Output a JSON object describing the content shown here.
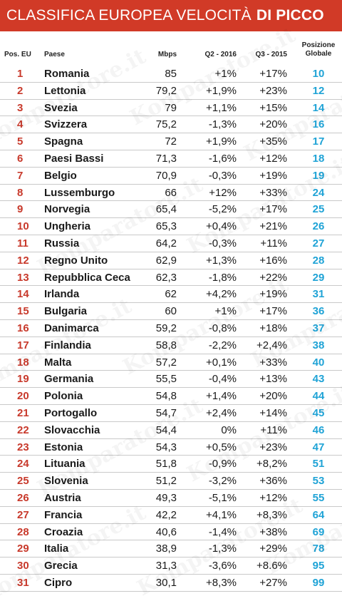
{
  "banner": {
    "title_regular": "CLASSIFICA EUROPEA VELOCITÀ",
    "title_bold": "DI PICCO"
  },
  "columns": {
    "pos": "Pos. EU",
    "paese": "Paese",
    "mbps": "Mbps",
    "q2": "Q2 - 2016",
    "q3": "Q3 - 2015",
    "glob_line1": "Posizione",
    "glob_line2": "Globale"
  },
  "watermark_text": "Komparatore.it",
  "colors": {
    "banner": "#d13a27",
    "rank": "#c8392b",
    "global": "#1fa3d6"
  },
  "rows": [
    {
      "pos": "1",
      "paese": "Romania",
      "mbps": "85",
      "q2": "+1%",
      "q3": "+17%",
      "glob": "10"
    },
    {
      "pos": "2",
      "paese": "Lettonia",
      "mbps": "79,2",
      "q2": "+1,9%",
      "q3": "+23%",
      "glob": "12"
    },
    {
      "pos": "3",
      "paese": "Svezia",
      "mbps": "79",
      "q2": "+1,1%",
      "q3": "+15%",
      "glob": "14"
    },
    {
      "pos": "4",
      "paese": "Svizzera",
      "mbps": "75,2",
      "q2": "-1,3%",
      "q3": "+20%",
      "glob": "16"
    },
    {
      "pos": "5",
      "paese": "Spagna",
      "mbps": "72",
      "q2": "+1,9%",
      "q3": "+35%",
      "glob": "17"
    },
    {
      "pos": "6",
      "paese": "Paesi Bassi",
      "mbps": "71,3",
      "q2": "-1,6%",
      "q3": "+12%",
      "glob": "18"
    },
    {
      "pos": "7",
      "paese": "Belgio",
      "mbps": "70,9",
      "q2": "-0,3%",
      "q3": "+19%",
      "glob": "19"
    },
    {
      "pos": "8",
      "paese": "Lussemburgo",
      "mbps": "66",
      "q2": "+12%",
      "q3": "+33%",
      "glob": "24"
    },
    {
      "pos": "9",
      "paese": "Norvegia",
      "mbps": "65,4",
      "q2": "-5,2%",
      "q3": "+17%",
      "glob": "25"
    },
    {
      "pos": "10",
      "paese": "Ungheria",
      "mbps": "65,3",
      "q2": "+0,4%",
      "q3": "+21%",
      "glob": "26"
    },
    {
      "pos": "11",
      "paese": "Russia",
      "mbps": "64,2",
      "q2": "-0,3%",
      "q3": "+11%",
      "glob": "27"
    },
    {
      "pos": "12",
      "paese": "Regno Unito",
      "mbps": "62,9",
      "q2": "+1,3%",
      "q3": "+16%",
      "glob": "28"
    },
    {
      "pos": "13",
      "paese": "Repubblica Ceca",
      "mbps": "62,3",
      "q2": "-1,8%",
      "q3": "+22%",
      "glob": "29"
    },
    {
      "pos": "14",
      "paese": "Irlanda",
      "mbps": "62",
      "q2": "+4,2%",
      "q3": "+19%",
      "glob": "31"
    },
    {
      "pos": "15",
      "paese": "Bulgaria",
      "mbps": "60",
      "q2": "+1%",
      "q3": "+17%",
      "glob": "36"
    },
    {
      "pos": "16",
      "paese": "Danimarca",
      "mbps": "59,2",
      "q2": "-0,8%",
      "q3": "+18%",
      "glob": "37"
    },
    {
      "pos": "17",
      "paese": "Finlandia",
      "mbps": "58,8",
      "q2": "-2,2%",
      "q3": "+2,4%",
      "glob": "38"
    },
    {
      "pos": "18",
      "paese": "Malta",
      "mbps": "57,2",
      "q2": "+0,1%",
      "q3": "+33%",
      "glob": "40"
    },
    {
      "pos": "19",
      "paese": "Germania",
      "mbps": "55,5",
      "q2": "-0,4%",
      "q3": "+13%",
      "glob": "43"
    },
    {
      "pos": "20",
      "paese": "Polonia",
      "mbps": "54,8",
      "q2": "+1,4%",
      "q3": "+20%",
      "glob": "44"
    },
    {
      "pos": "21",
      "paese": "Portogallo",
      "mbps": "54,7",
      "q2": "+2,4%",
      "q3": "+14%",
      "glob": "45"
    },
    {
      "pos": "22",
      "paese": "Slovacchia",
      "mbps": "54,4",
      "q2": "0%",
      "q3": "+11%",
      "glob": "46"
    },
    {
      "pos": "23",
      "paese": "Estonia",
      "mbps": "54,3",
      "q2": "+0,5%",
      "q3": "+23%",
      "glob": "47"
    },
    {
      "pos": "24",
      "paese": "Lituania",
      "mbps": "51,8",
      "q2": "-0,9%",
      "q3": "+8,2%",
      "glob": "51"
    },
    {
      "pos": "25",
      "paese": "Slovenia",
      "mbps": "51,2",
      "q2": "-3,2%",
      "q3": "+36%",
      "glob": "53"
    },
    {
      "pos": "26",
      "paese": "Austria",
      "mbps": "49,3",
      "q2": "-5,1%",
      "q3": "+12%",
      "glob": "55"
    },
    {
      "pos": "27",
      "paese": "Francia",
      "mbps": "42,2",
      "q2": "+4,1%",
      "q3": "+8,3%",
      "glob": "64"
    },
    {
      "pos": "28",
      "paese": "Croazia",
      "mbps": "40,6",
      "q2": "-1,4%",
      "q3": "+38%",
      "glob": "69"
    },
    {
      "pos": "29",
      "paese": "Italia",
      "mbps": "38,9",
      "q2": "-1,3%",
      "q3": "+29%",
      "glob": "78"
    },
    {
      "pos": "30",
      "paese": "Grecia",
      "mbps": "31,3",
      "q2": "-3,6%",
      "q3": "+8.6%",
      "glob": "95"
    },
    {
      "pos": "31",
      "paese": "Cipro",
      "mbps": "30,1",
      "q2": "+8,3%",
      "q3": "+27%",
      "glob": "99"
    }
  ]
}
